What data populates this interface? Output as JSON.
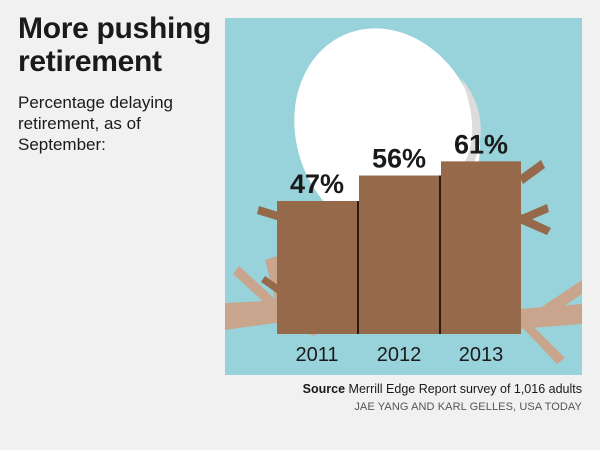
{
  "colors": {
    "background": "#f1f1f1",
    "panel": "#98d3dc",
    "bar": "#96694a",
    "branch": "#c9a58d",
    "egg": "#ffffff"
  },
  "icons": [
    "nest-egg-illustration"
  ],
  "source_label": "Source",
  "source_text": "Merrill Edge Report survey of 1,016 adults",
  "credit": "JAE YANG AND KARL GELLES, USA TODAY",
  "chart_data": {
    "type": "bar",
    "title": "More pushing retirement",
    "subtitle": "Percentage delaying retirement, as of September:",
    "categories": [
      "2011",
      "2012",
      "2013"
    ],
    "values": [
      47,
      56,
      61
    ],
    "value_labels": [
      "47%",
      "56%",
      "61%"
    ],
    "unit": "%",
    "ylim": [
      0,
      100
    ],
    "grid": false,
    "legend": "none"
  }
}
